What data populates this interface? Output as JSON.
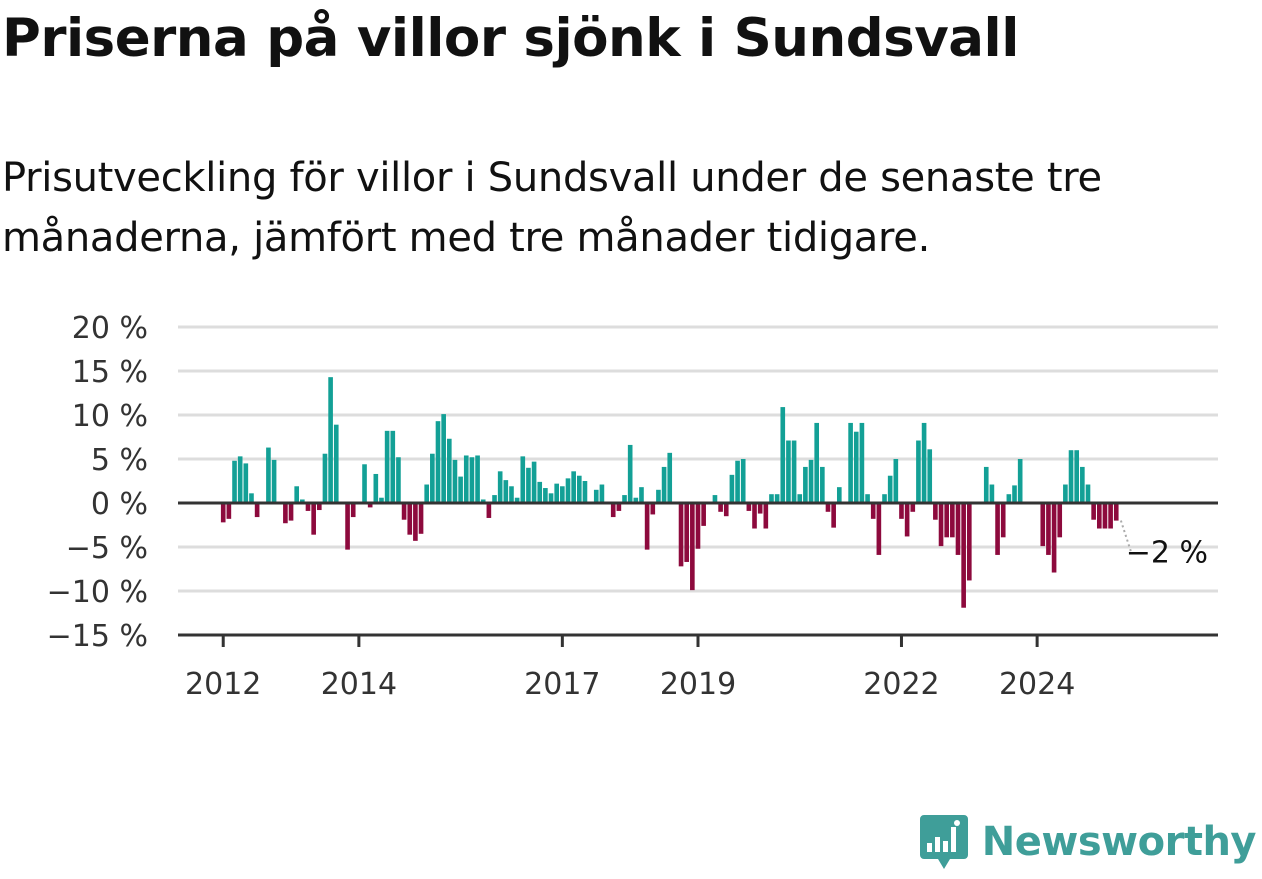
{
  "title": "Priserna på villor sjönk i Sundsvall",
  "subtitle": "Prisutveckling för villor i Sundsvall under de senaste tre månaderna, jämfört med tre månader tidigare.",
  "brand": {
    "name": "Newsworthy",
    "icon": "newsworthy-logo-icon",
    "color": "#3f9e99"
  },
  "colors": {
    "positive": "#13a096",
    "negative": "#8d0a3d",
    "grid": "#dddddd",
    "axis": "#333333"
  },
  "chart_data": {
    "type": "bar",
    "y_tick_labels": [
      "20 %",
      "15 %",
      "10 %",
      "5 %",
      "0 %",
      "−5 %",
      "−10 %",
      "−15 %"
    ],
    "y_ticks": [
      20,
      15,
      10,
      5,
      0,
      -5,
      -10,
      -15
    ],
    "ylim": [
      -15,
      20
    ],
    "x_tick_labels": [
      "2012",
      "2014",
      "2017",
      "2019",
      "2022",
      "2024"
    ],
    "x_ticks": [
      2012,
      2014,
      2017,
      2019,
      2022,
      2024
    ],
    "xlim": [
      2011.3333,
      2026.6667
    ],
    "grid": true,
    "end_label": "−2 %",
    "start_month": "2012-01",
    "values": [
      -2.2,
      -1.8,
      4.8,
      5.3,
      4.5,
      1.1,
      -1.6,
      0,
      6.3,
      4.9,
      0,
      -2.3,
      -2.0,
      1.9,
      0.4,
      -0.9,
      -3.6,
      -0.8,
      5.6,
      14.3,
      8.9,
      0,
      -5.3,
      -1.6,
      0,
      4.4,
      -0.5,
      3.3,
      0.6,
      8.2,
      8.2,
      5.2,
      -1.9,
      -3.6,
      -4.3,
      -3.5,
      2.1,
      5.6,
      9.3,
      10.1,
      7.3,
      4.9,
      3.0,
      5.4,
      5.2,
      5.4,
      0.4,
      -1.7,
      0.9,
      3.6,
      2.6,
      1.9,
      0.6,
      5.3,
      4.0,
      4.7,
      2.4,
      1.7,
      1.1,
      2.2,
      1.9,
      2.8,
      3.6,
      3.1,
      2.5,
      0,
      1.5,
      2.1,
      0,
      -1.6,
      -0.9,
      0.9,
      6.6,
      0.6,
      1.8,
      -5.3,
      -1.3,
      1.5,
      4.1,
      5.7,
      0,
      -7.2,
      -6.7,
      -9.9,
      -5.2,
      -2.6,
      0,
      0.9,
      -1.0,
      -1.5,
      3.2,
      4.8,
      5.0,
      -0.9,
      -2.9,
      -1.2,
      -2.9,
      1.0,
      1.0,
      10.9,
      7.1,
      7.1,
      1.0,
      4.1,
      4.9,
      9.1,
      4.1,
      -1.0,
      -2.8,
      1.8,
      0,
      9.1,
      8.1,
      9.1,
      1.0,
      -1.8,
      -5.9,
      1.0,
      3.1,
      5.0,
      -1.8,
      -3.8,
      -1.0,
      7.1,
      9.1,
      6.1,
      -1.9,
      -4.9,
      -3.9,
      -3.9,
      -5.9,
      -11.9,
      -8.8,
      0,
      0,
      4.1,
      2.1,
      -5.9,
      -3.9,
      1.0,
      2.0,
      5.0,
      0,
      0,
      0,
      -4.9,
      -5.9,
      -7.9,
      -3.9,
      2.1,
      6.0,
      6.0,
      4.1,
      2.1,
      -1.9,
      -2.9,
      -2.9,
      -2.9,
      -2.0
    ]
  }
}
